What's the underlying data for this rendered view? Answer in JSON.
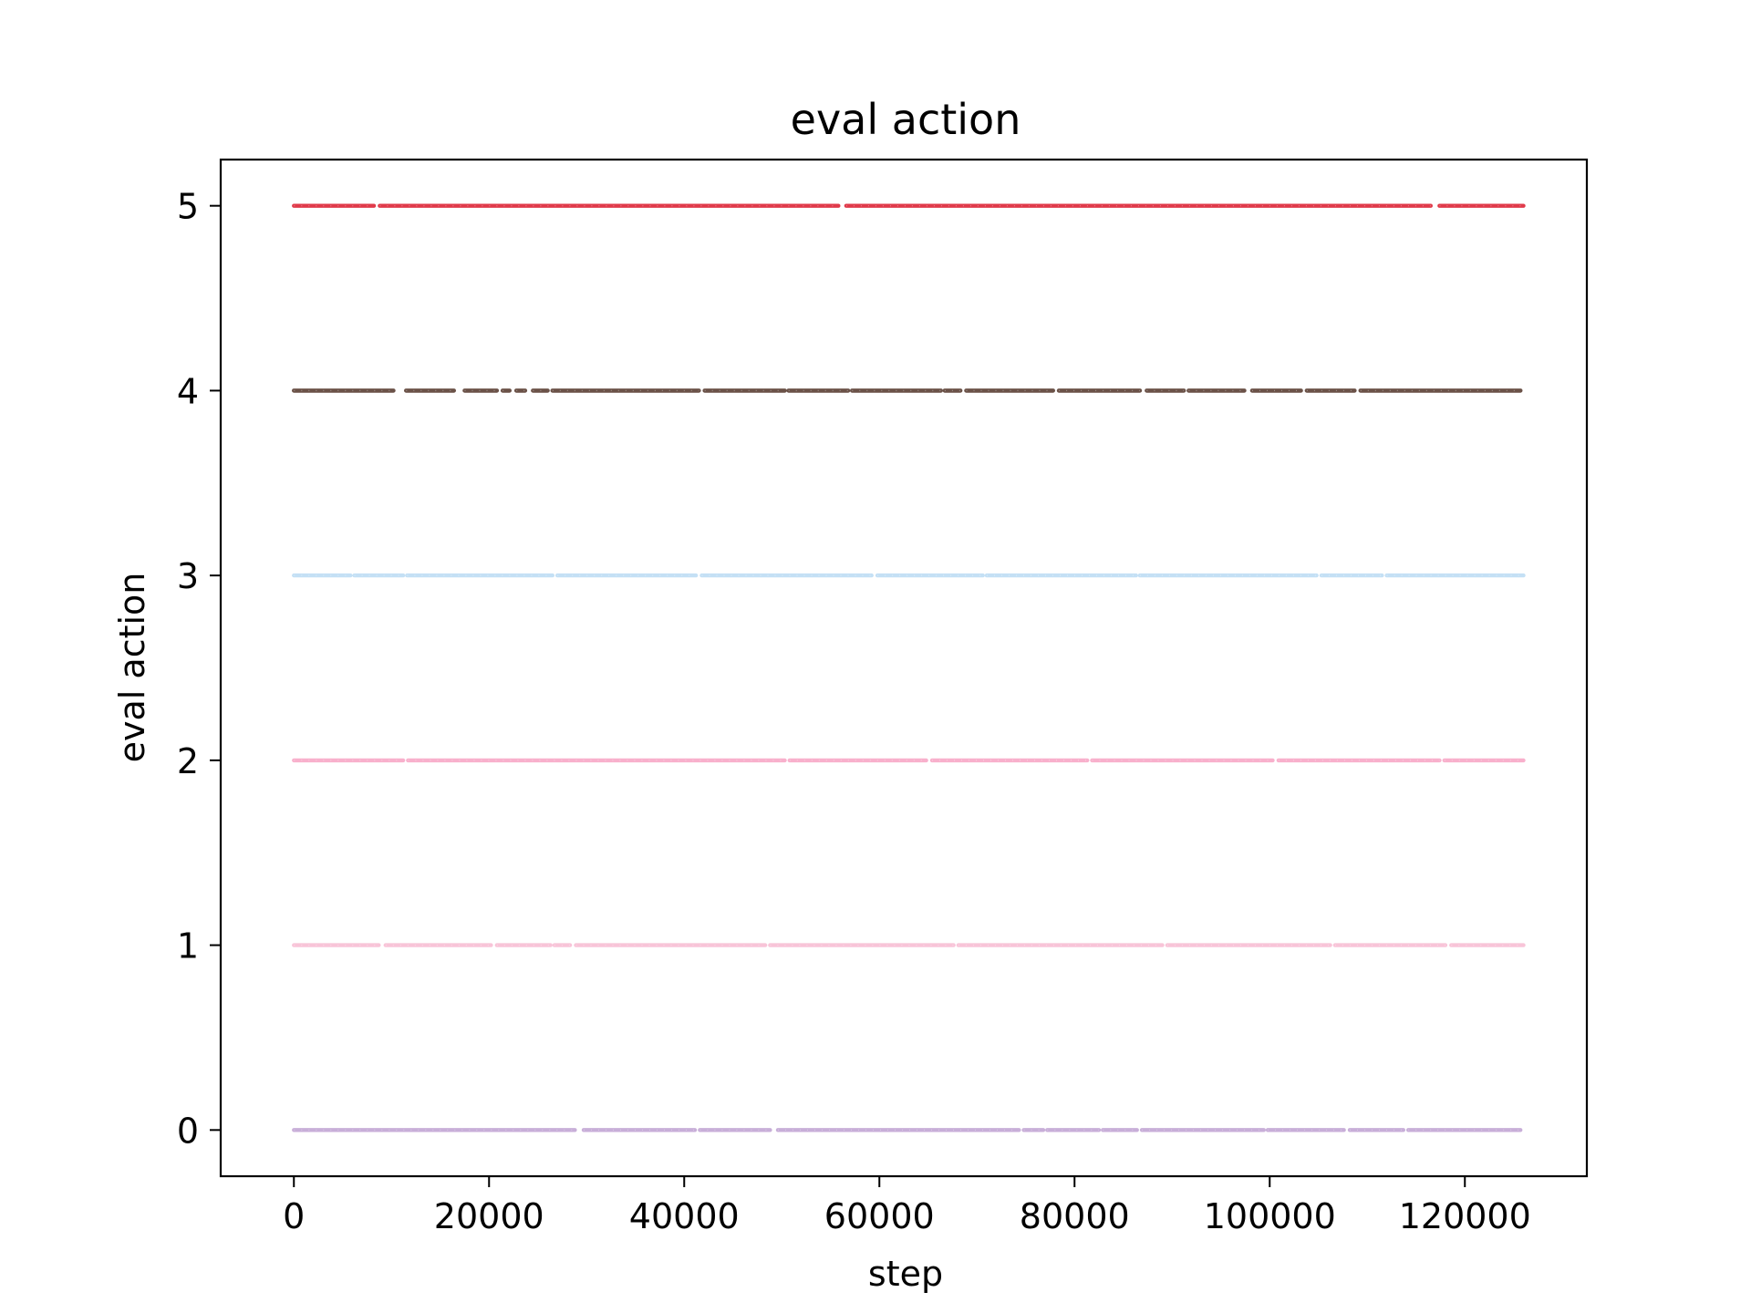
{
  "chart_data": {
    "type": "scatter",
    "title": "eval action",
    "xlabel": "step",
    "ylabel": "eval action",
    "xlim": [
      -7500,
      132500
    ],
    "ylim": [
      -0.25,
      5.25
    ],
    "grid": false,
    "x_ticks": [
      0,
      20000,
      40000,
      60000,
      80000,
      100000,
      120000
    ],
    "x_tick_labels": [
      "0",
      "20000",
      "40000",
      "60000",
      "80000",
      "100000",
      "120000"
    ],
    "y_ticks": [
      0,
      1,
      2,
      3,
      4,
      5
    ],
    "y_tick_labels": [
      "0",
      "1",
      "2",
      "3",
      "4",
      "5"
    ],
    "series": [
      {
        "y": 5,
        "color": "#e03a4a",
        "x_range": [
          0,
          126000
        ],
        "gaps": [
          [
            8200,
            8800
          ],
          [
            55800,
            56600
          ],
          [
            116500,
            117400
          ]
        ]
      },
      {
        "y": 4,
        "color": "#6b5248",
        "x_range": [
          0,
          125700
        ],
        "gaps": [
          [
            10200,
            11500
          ],
          [
            16400,
            17500
          ],
          [
            20800,
            21400
          ],
          [
            22100,
            22800
          ],
          [
            23700,
            24500
          ],
          [
            26000,
            26500
          ],
          [
            41500,
            42100
          ],
          [
            50300,
            50700
          ],
          [
            56800,
            57200
          ],
          [
            66300,
            66700
          ],
          [
            68300,
            68900
          ],
          [
            77800,
            78400
          ],
          [
            86700,
            87400
          ],
          [
            91200,
            91700
          ],
          [
            97400,
            98200
          ],
          [
            103200,
            103800
          ],
          [
            108700,
            109300
          ]
        ]
      },
      {
        "y": 3,
        "color": "#c4e0f5",
        "x_range": [
          0,
          126000
        ],
        "gaps": [
          [
            5800,
            6200
          ],
          [
            11200,
            11600
          ],
          [
            26500,
            27000
          ],
          [
            41200,
            41800
          ],
          [
            59200,
            59800
          ],
          [
            70600,
            71000
          ],
          [
            86300,
            86700
          ],
          [
            104800,
            105300
          ],
          [
            111500,
            112000
          ]
        ]
      },
      {
        "y": 2,
        "color": "#f8b0cc",
        "x_range": [
          0,
          126000
        ],
        "gaps": [
          [
            11200,
            11700
          ],
          [
            50300,
            50800
          ],
          [
            64800,
            65400
          ],
          [
            81300,
            81800
          ],
          [
            100300,
            100900
          ],
          [
            117400,
            117900
          ]
        ]
      },
      {
        "y": 1,
        "color": "#f8c4d8",
        "x_range": [
          0,
          126000
        ],
        "gaps": [
          [
            8700,
            9400
          ],
          [
            20200,
            20800
          ],
          [
            26300,
            26700
          ],
          [
            28300,
            28900
          ],
          [
            48300,
            48800
          ],
          [
            67600,
            68100
          ],
          [
            89000,
            89500
          ],
          [
            106200,
            106700
          ],
          [
            118000,
            118600
          ]
        ]
      },
      {
        "y": 0,
        "color": "#c8aed8",
        "x_range": [
          0,
          125700
        ],
        "gaps": [
          [
            28800,
            29700
          ],
          [
            41100,
            41600
          ],
          [
            48800,
            49600
          ],
          [
            74300,
            74800
          ],
          [
            76800,
            77200
          ],
          [
            82500,
            82900
          ],
          [
            86400,
            86900
          ],
          [
            99400,
            99800
          ],
          [
            107600,
            108200
          ],
          [
            113700,
            114200
          ]
        ]
      }
    ]
  }
}
